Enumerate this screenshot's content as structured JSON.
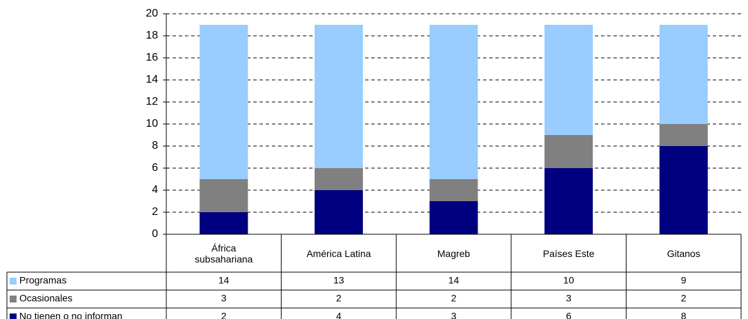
{
  "chart_data": {
    "type": "stacked_bar",
    "categories": [
      "África subsahariana",
      "América Latina",
      "Magreb",
      "Países Este",
      "Gitanos"
    ],
    "series": [
      {
        "name": "Programas",
        "color": "#99ccff",
        "values": [
          14,
          13,
          14,
          10,
          9
        ]
      },
      {
        "name": "Ocasionales",
        "color": "#808080",
        "values": [
          3,
          2,
          2,
          3,
          2
        ]
      },
      {
        "name": "No tienen o no informan",
        "color": "#000080",
        "values": [
          2,
          4,
          3,
          6,
          8
        ]
      }
    ],
    "ylim": [
      0,
      20
    ],
    "yticks": [
      0,
      2,
      4,
      6,
      8,
      10,
      12,
      14,
      16,
      18,
      20
    ],
    "grid": true,
    "data_table": true
  }
}
